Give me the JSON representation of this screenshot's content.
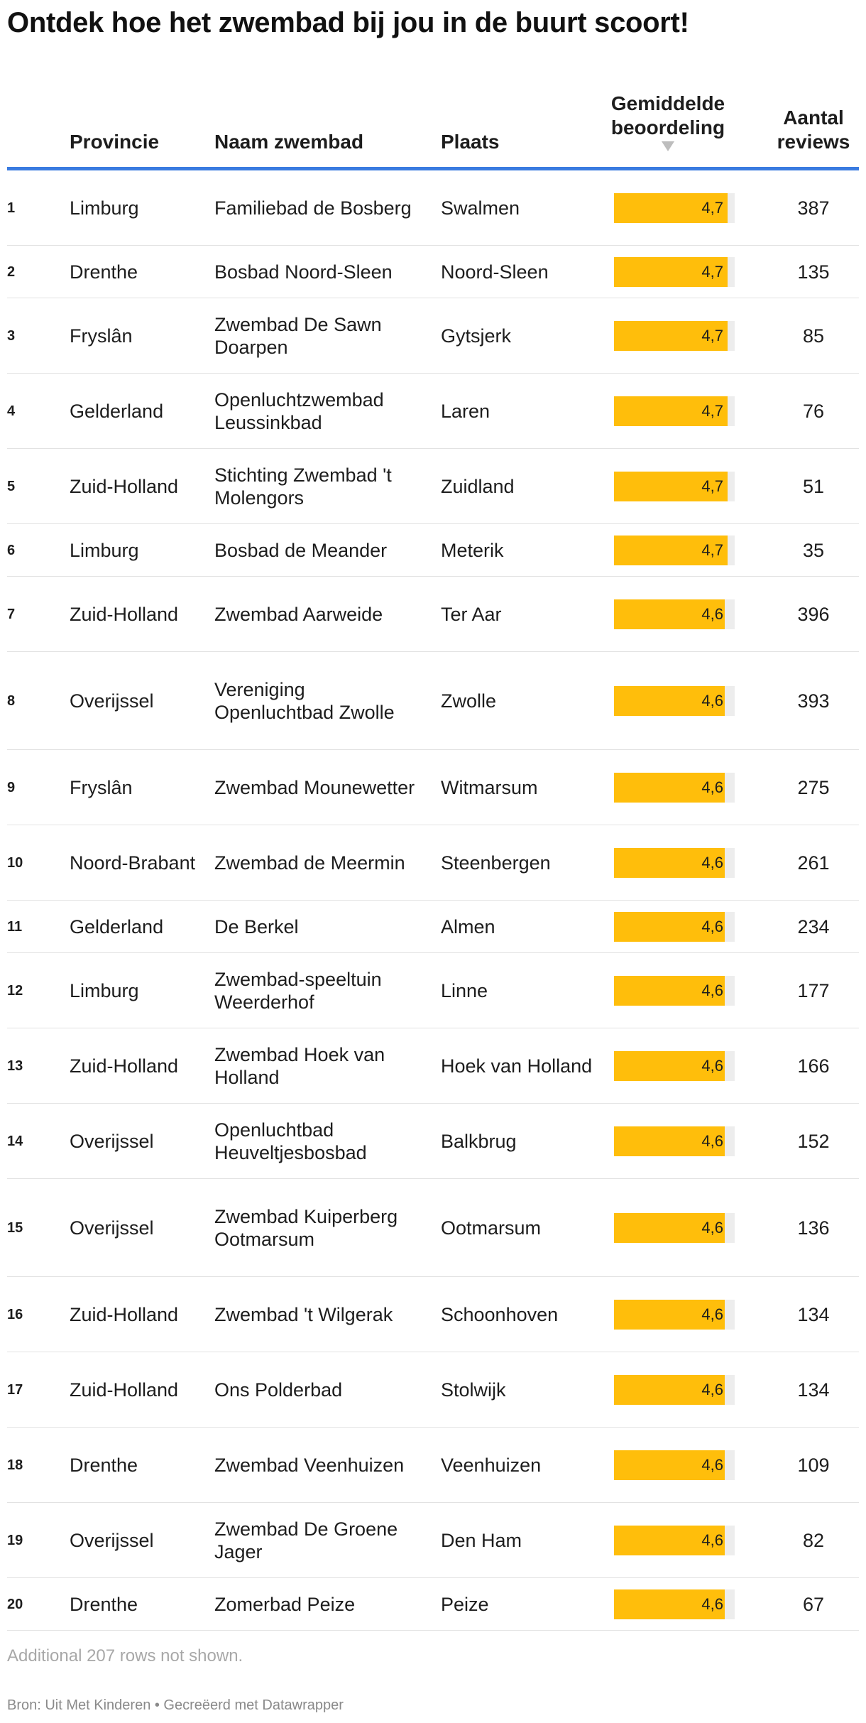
{
  "title": "Ontdek hoe het zwembad bij jou in de buurt scoort!",
  "columns": {
    "provincie": "Provincie",
    "naam": "Naam zwembad",
    "plaats": "Plaats",
    "score_line1": "Gemiddelde",
    "score_line2": "beoordeling",
    "reviews_line1": "Aantal",
    "reviews_line2": "reviews"
  },
  "sort": {
    "column": "Gemiddelde beoordeling",
    "direction": "descending"
  },
  "colors": {
    "bar": "#ffbe0b",
    "track": "#ededed",
    "header_rule": "#3a7be0"
  },
  "chart_data": {
    "type": "table",
    "score_max": 5,
    "rows": [
      {
        "rank": "1",
        "provincie": "Limburg",
        "naam": "Familiebad de Bosberg",
        "plaats": "Swalmen",
        "score": 4.7,
        "score_label": "4,7",
        "reviews": "387"
      },
      {
        "rank": "2",
        "provincie": "Drenthe",
        "naam": "Bosbad Noord-Sleen",
        "plaats": "Noord-Sleen",
        "score": 4.7,
        "score_label": "4,7",
        "reviews": "135"
      },
      {
        "rank": "3",
        "provincie": "Fryslân",
        "naam": "Zwembad De Sawn Doarpen",
        "plaats": "Gytsjerk",
        "score": 4.7,
        "score_label": "4,7",
        "reviews": "85"
      },
      {
        "rank": "4",
        "provincie": "Gelderland",
        "naam": "Openluchtzwembad Leussinkbad",
        "plaats": "Laren",
        "score": 4.7,
        "score_label": "4,7",
        "reviews": "76"
      },
      {
        "rank": "5",
        "provincie": "Zuid-Holland",
        "naam": "Stichting Zwembad 't Molengors",
        "plaats": "Zuidland",
        "score": 4.7,
        "score_label": "4,7",
        "reviews": "51"
      },
      {
        "rank": "6",
        "provincie": "Limburg",
        "naam": "Bosbad de Meander",
        "plaats": "Meterik",
        "score": 4.7,
        "score_label": "4,7",
        "reviews": "35"
      },
      {
        "rank": "7",
        "provincie": "Zuid-Holland",
        "naam": "Zwembad Aarweide",
        "plaats": "Ter Aar",
        "score": 4.6,
        "score_label": "4,6",
        "reviews": "396"
      },
      {
        "rank": "8",
        "provincie": "Overijssel",
        "naam": "Vereniging Openluchtbad Zwolle",
        "plaats": "Zwolle",
        "score": 4.6,
        "score_label": "4,6",
        "reviews": "393"
      },
      {
        "rank": "9",
        "provincie": "Fryslân",
        "naam": "Zwembad Mounewetter",
        "plaats": "Witmarsum",
        "score": 4.6,
        "score_label": "4,6",
        "reviews": "275"
      },
      {
        "rank": "10",
        "provincie": "Noord-Brabant",
        "naam": "Zwembad de Meermin",
        "plaats": "Steenbergen",
        "score": 4.6,
        "score_label": "4,6",
        "reviews": "261"
      },
      {
        "rank": "11",
        "provincie": "Gelderland",
        "naam": "De Berkel",
        "plaats": "Almen",
        "score": 4.6,
        "score_label": "4,6",
        "reviews": "234"
      },
      {
        "rank": "12",
        "provincie": "Limburg",
        "naam": "Zwembad-speeltuin Weerderhof",
        "plaats": "Linne",
        "score": 4.6,
        "score_label": "4,6",
        "reviews": "177"
      },
      {
        "rank": "13",
        "provincie": "Zuid-Holland",
        "naam": "Zwembad Hoek van Holland",
        "plaats": "Hoek van Holland",
        "score": 4.6,
        "score_label": "4,6",
        "reviews": "166"
      },
      {
        "rank": "14",
        "provincie": "Overijssel",
        "naam": "Openluchtbad Heuveltjesbosbad",
        "plaats": "Balkbrug",
        "score": 4.6,
        "score_label": "4,6",
        "reviews": "152"
      },
      {
        "rank": "15",
        "provincie": "Overijssel",
        "naam": "Zwembad Kuiperberg Ootmarsum",
        "plaats": "Ootmarsum",
        "score": 4.6,
        "score_label": "4,6",
        "reviews": "136"
      },
      {
        "rank": "16",
        "provincie": "Zuid-Holland",
        "naam": "Zwembad 't Wilgerak",
        "plaats": "Schoonhoven",
        "score": 4.6,
        "score_label": "4,6",
        "reviews": "134"
      },
      {
        "rank": "17",
        "provincie": "Zuid-Holland",
        "naam": "Ons Polderbad",
        "plaats": "Stolwijk",
        "score": 4.6,
        "score_label": "4,6",
        "reviews": "134"
      },
      {
        "rank": "18",
        "provincie": "Drenthe",
        "naam": "Zwembad Veenhuizen",
        "plaats": "Veenhuizen",
        "score": 4.6,
        "score_label": "4,6",
        "reviews": "109"
      },
      {
        "rank": "19",
        "provincie": "Overijssel",
        "naam": "Zwembad De Groene Jager",
        "plaats": "Den Ham",
        "score": 4.6,
        "score_label": "4,6",
        "reviews": "82"
      },
      {
        "rank": "20",
        "provincie": "Drenthe",
        "naam": "Zomerbad Peize",
        "plaats": "Peize",
        "score": 4.6,
        "score_label": "4,6",
        "reviews": "67"
      }
    ]
  },
  "note": "Additional 207 rows not shown.",
  "footer": "Bron: Uit Met Kinderen • Gecreëerd met Datawrapper"
}
